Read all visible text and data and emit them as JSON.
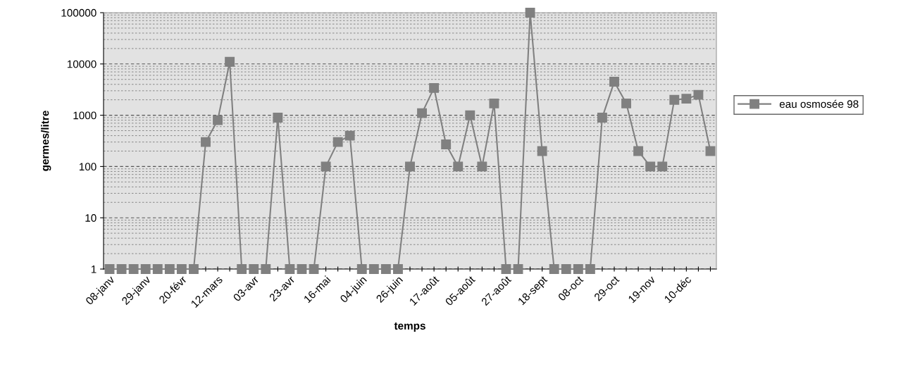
{
  "chart_data": {
    "type": "line",
    "xlabel": "temps",
    "ylabel": "germes/litre",
    "categories": [
      "08-janv",
      null,
      null,
      "29-janv",
      null,
      null,
      "20-févr",
      null,
      null,
      "12-mars",
      null,
      null,
      "03-avr",
      null,
      null,
      "23-avr",
      null,
      null,
      "16-mai",
      null,
      null,
      "04-juin",
      null,
      null,
      "26-juin",
      null,
      null,
      "17-août",
      null,
      null,
      "05-août",
      null,
      null,
      "27-août",
      null,
      null,
      "18-sept",
      null,
      null,
      "08-oct",
      null,
      null,
      "29-oct",
      null,
      null,
      "19-nov",
      null,
      null,
      "10-déc",
      null,
      null
    ],
    "series": [
      {
        "name": "eau osmosée 98",
        "color": "#808080",
        "values": [
          1,
          1,
          1,
          1,
          1,
          1,
          1,
          1,
          300,
          800,
          11000,
          1,
          1,
          1,
          900,
          1,
          1,
          1,
          100,
          300,
          400,
          1,
          1,
          1,
          1,
          100,
          1100,
          3400,
          270,
          100,
          1000,
          100,
          1700,
          1,
          1,
          100000,
          200,
          1,
          1,
          1,
          1,
          900,
          4500,
          1700,
          200,
          100,
          100,
          2000,
          2100,
          2500,
          200
        ]
      }
    ],
    "log": "y",
    "ylim": [
      1,
      100000
    ],
    "yticks": [
      1,
      10,
      100,
      1000,
      10000,
      100000
    ],
    "grid": "y",
    "legend": "right",
    "marker": "square",
    "line_style": "solid"
  }
}
